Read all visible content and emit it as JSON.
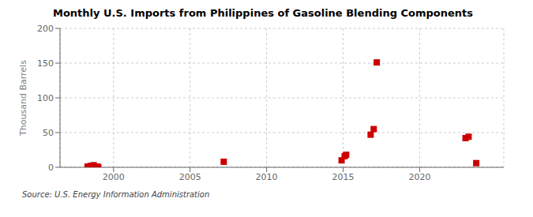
{
  "chart_data": {
    "type": "scatter",
    "title": "Monthly U.S. Imports from Philippines of Gasoline Blending Components",
    "y_label": "Thousand Barrels",
    "annotations": [
      "Source: U.S. Energy Information Administration"
    ],
    "x": [
      1998.3,
      1998.5,
      1998.7,
      1998.9,
      1999.0,
      2007.2,
      2014.9,
      2015.1,
      2015.2,
      2016.8,
      2017.0,
      2017.2,
      2023.0,
      2023.2,
      2023.7
    ],
    "values": [
      1,
      2,
      3,
      1,
      0.5,
      8,
      10,
      16,
      18,
      47,
      55,
      151,
      42,
      44,
      6
    ],
    "color": "#cc0000",
    "marker": "square",
    "xlim": [
      1996.5,
      2025.5
    ],
    "ylim": [
      0,
      200
    ],
    "xticks": [
      2000,
      2005,
      2010,
      2015,
      2020
    ],
    "yticks": [
      0,
      50,
      100,
      150,
      200
    ],
    "grid": true
  }
}
